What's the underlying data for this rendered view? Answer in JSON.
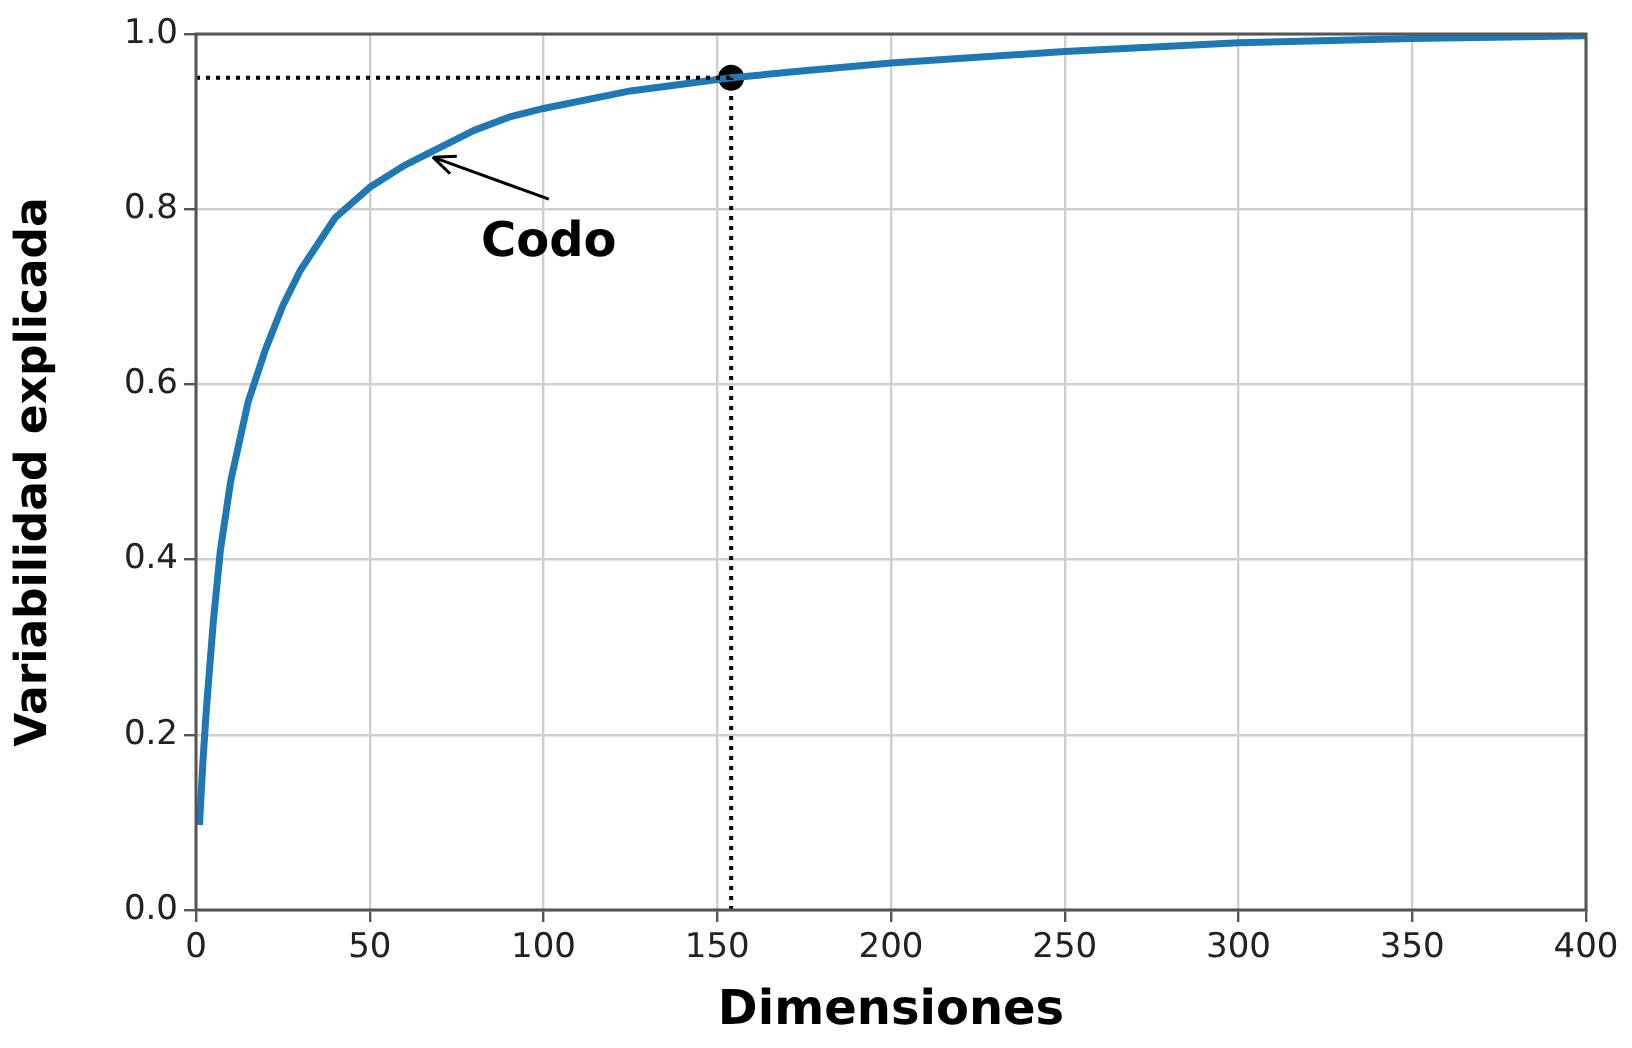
{
  "chart_data": {
    "type": "line",
    "xlabel": "Dimensiones",
    "ylabel": "Variabilidad explicada",
    "series": [
      {
        "color": "#1f77b4",
        "x": [
          1,
          2,
          3,
          5,
          7,
          10,
          15,
          20,
          25,
          30,
          40,
          50,
          60,
          70,
          80,
          90,
          100,
          125,
          154,
          175,
          200,
          250,
          300,
          350,
          400
        ],
        "values": [
          0.097,
          0.17,
          0.23,
          0.33,
          0.41,
          0.49,
          0.58,
          0.64,
          0.69,
          0.73,
          0.79,
          0.825,
          0.85,
          0.87,
          0.89,
          0.905,
          0.915,
          0.935,
          0.95,
          0.958,
          0.967,
          0.98,
          0.99,
          0.995,
          0.998
        ]
      },
      {
        "type": "scatter",
        "color": "#000000",
        "x": [
          154
        ],
        "values": [
          0.95
        ],
        "marker": "circle"
      }
    ],
    "xlim": [
      0,
      400
    ],
    "xticks": [
      0,
      50,
      100,
      150,
      200,
      250,
      300,
      350,
      400
    ],
    "ylim": [
      0,
      1
    ],
    "yticks": [
      {
        "value": 0,
        "label": "0.0"
      },
      0.2,
      0.4,
      0.6,
      0.8,
      {
        "value": 1,
        "label": "1.0"
      }
    ],
    "ref_lines": [
      {
        "axis": "y",
        "value": 0.95,
        "color": "#000000",
        "line_style": "dotted"
      },
      {
        "axis": "x",
        "value": 154,
        "color": "#000000",
        "line_style": "dotted"
      }
    ],
    "annotations": [
      {
        "text": "Codo",
        "x": 67,
        "y": 0.864
      }
    ],
    "grid": true,
    "legend": false,
    "line_style": "solid"
  }
}
